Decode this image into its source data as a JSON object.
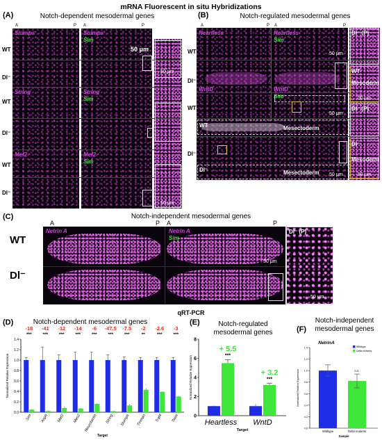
{
  "figure_title": "mRNA Fluorescent in situ Hybridizations",
  "panel_A": {
    "label": "(A)",
    "title": "Notch-dependent mesodermal genes",
    "axis_ends": [
      "A",
      "P",
      "A",
      "P"
    ],
    "rows": [
      "WT",
      "Dl⁻",
      "WT",
      "Dl⁻",
      "WT",
      "Dl⁻"
    ],
    "genes": [
      "Stumps",
      "String",
      "Mef2"
    ],
    "merge_label": "Sim",
    "scalebars": [
      "50 μm",
      "50 μm",
      "50 μm"
    ]
  },
  "panel_B": {
    "label": "(B)",
    "title": "Notch-regulated mesodermal genes",
    "axis_ends": [
      "A",
      "P",
      "A",
      "P"
    ],
    "rows": [
      "WT",
      "Dl⁻",
      "WT",
      "Dl⁻"
    ],
    "genes": [
      "Heartless",
      "WntD"
    ],
    "merge_label": "Sim",
    "scalebars": [
      "50 μm",
      "50 μm",
      "50 μm",
      "50 μm",
      "50 μm"
    ],
    "inset_labels": [
      "Dl⁻ (P)",
      "WT",
      "Mesoderm",
      "Dl⁻ (P)",
      "Dl⁻",
      "Mesoderm"
    ],
    "mesectoderm_labels": [
      "WT",
      "Mesectoderm",
      "Dl⁻",
      "Mesectoderm"
    ]
  },
  "panel_C": {
    "label": "(C)",
    "title": "Notch-independent mesodermal genes",
    "axis_ends": [
      "A",
      "P",
      "A",
      "P"
    ],
    "rows": [
      "WT",
      "Dl⁻"
    ],
    "gene": "Netrin A",
    "merge_label": "Sim",
    "inset_label": "Dl⁻ (P)",
    "scalebars": [
      "50 μm",
      "50 μm"
    ]
  },
  "qrt_title": "qRT-PCR",
  "colors": {
    "wildtype": "#1f2ce6",
    "mutant": "#3ee63a",
    "magenta": "#d040e0",
    "fold": "#e0301e"
  },
  "chart_D": {
    "label": "(D)",
    "title": "Notch-dependent mesodermal genes",
    "type": "bar",
    "xlabel": "Target",
    "ylabel": "Normalized Relative Expression",
    "ylim": [
      0,
      1.4
    ],
    "yticks": [
      "0.0",
      "0.2",
      "0.4",
      "0.6",
      "0.8",
      "1.0",
      "1.2",
      "1.4"
    ],
    "categories": [
      "Sim",
      "Asph",
      "Mef2",
      "Mes2",
      "Neurotactin",
      "String",
      "Stumps",
      "Tinman",
      "Traf4",
      "Twist"
    ],
    "fold_changes": [
      "-18",
      "-41",
      "-12",
      "-14",
      "-6",
      "-47.5",
      "-7.5",
      "-2",
      "-2.6",
      "-3"
    ],
    "significance": [
      "***",
      "***",
      "***",
      "***",
      "***",
      "***",
      "***",
      "**",
      "***",
      "***"
    ],
    "series": [
      {
        "name": "Wildtype",
        "values": [
          1,
          1,
          1,
          1,
          1,
          1,
          1,
          1,
          1,
          1
        ],
        "errors": [
          0.05,
          0.25,
          0.1,
          0.15,
          0.15,
          0.1,
          0.06,
          0.05,
          0.05,
          0.05
        ]
      },
      {
        "name": "Delta mutants",
        "values": [
          0.05,
          0.025,
          0.08,
          0.07,
          0.16,
          0.02,
          0.13,
          0.43,
          0.39,
          0.3
        ],
        "errors": [
          0.01,
          0.01,
          0.02,
          0.01,
          0.01,
          0.01,
          0.02,
          0.03,
          0.01,
          0.01
        ]
      }
    ]
  },
  "chart_E": {
    "label": "(E)",
    "title": "Notch-regulated mesodermal genes",
    "type": "bar",
    "xlabel": "Target",
    "ylabel": "Normalized Relative Expression",
    "ylim": [
      0,
      8
    ],
    "yticks": [
      "0",
      "2",
      "4",
      "6",
      "8"
    ],
    "categories": [
      "Heartless",
      "WntD"
    ],
    "fold_changes": [
      "+ 5.5",
      "+ 3.2"
    ],
    "significance": [
      "***",
      "***"
    ],
    "series": [
      {
        "name": "Wildtype",
        "values": [
          1,
          1
        ],
        "errors": [
          0.05,
          0.2
        ]
      },
      {
        "name": "Delta mutants",
        "values": [
          5.5,
          3.2
        ],
        "errors": [
          0.35,
          0.2
        ]
      }
    ]
  },
  "chart_F": {
    "label": "(F)",
    "title": "Notch-independent mesodermal genes",
    "type": "bar",
    "chart_title": "NetrinA",
    "xlabel": "Sample",
    "ylabel": "Normalized Relative Expression",
    "ylim": [
      0,
      1.4
    ],
    "yticks": [
      "0.0",
      "0.2",
      "0.4",
      "0.6",
      "0.8",
      "1.0",
      "1.2",
      "1.4"
    ],
    "categories": [
      "Wildtype",
      "Delta mutants"
    ],
    "significance": [
      "",
      "n.s."
    ],
    "legend": [
      "Wildtype",
      "Delta mutants"
    ],
    "values": [
      1.0,
      0.82
    ],
    "errors": [
      0.1,
      0.12
    ]
  }
}
